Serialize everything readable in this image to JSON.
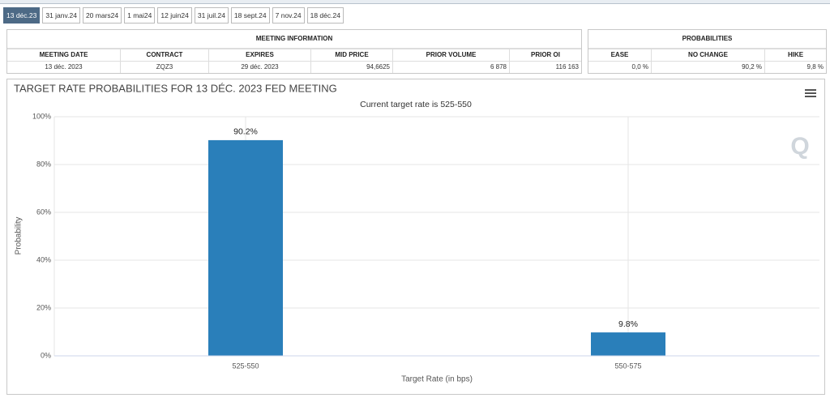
{
  "tabs": [
    "13 déc.23",
    "31 janv.24",
    "20 mars24",
    "1 mai24",
    "12 juin24",
    "31 juil.24",
    "18 sept.24",
    "7 nov.24",
    "18 déc.24"
  ],
  "meeting_information": {
    "title": "MEETING INFORMATION",
    "headers": [
      "MEETING DATE",
      "CONTRACT",
      "EXPIRES",
      "MID PRICE",
      "PRIOR VOLUME",
      "PRIOR OI"
    ],
    "row": [
      "13 déc. 2023",
      "ZQZ3",
      "29 déc. 2023",
      "94,6625",
      "6 878",
      "116 163"
    ]
  },
  "probabilities": {
    "title": "PROBABILITIES",
    "headers": [
      "EASE",
      "NO CHANGE",
      "HIKE"
    ],
    "row": [
      "0,0 %",
      "90,2 %",
      "9,8 %"
    ]
  },
  "chart_data": {
    "type": "bar",
    "title": "TARGET RATE PROBABILITIES FOR 13 DÉC. 2023 FED MEETING",
    "subtitle": "Current target rate is 525-550",
    "x_label": "Target Rate (in bps)",
    "y_label": "Probability",
    "categories": [
      "525-550",
      "550-575"
    ],
    "values": [
      90.2,
      9.8
    ],
    "value_labels": [
      "90.2%",
      "9.8%"
    ],
    "color": "#2a7fba",
    "ylim": [
      0,
      100
    ],
    "yticks": [
      {
        "value": 0,
        "label": "0%"
      },
      {
        "value": 20,
        "label": "20%"
      },
      {
        "value": 40,
        "label": "40%"
      },
      {
        "value": 60,
        "label": "60%"
      },
      {
        "value": 80,
        "label": "80%"
      },
      {
        "value": 100,
        "label": "100%"
      }
    ],
    "grid": true
  }
}
